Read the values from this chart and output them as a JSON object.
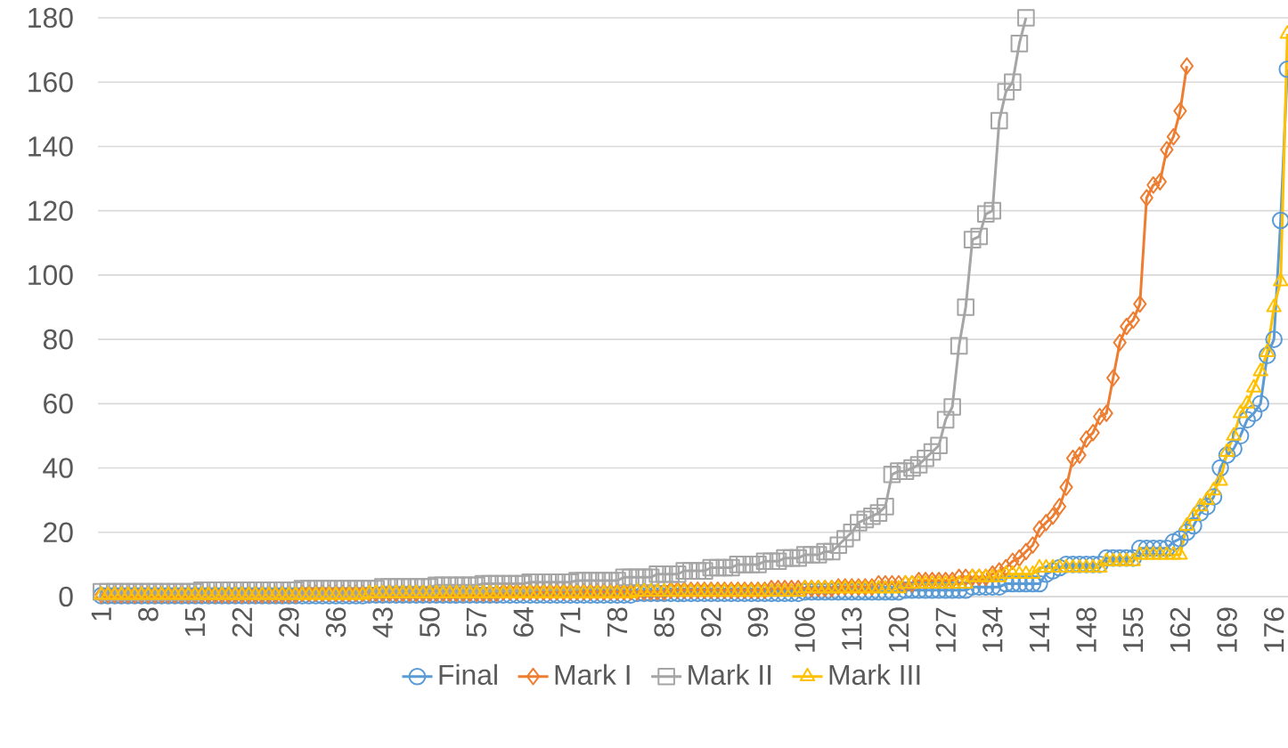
{
  "chart_data": {
    "type": "line",
    "categories": [
      "1",
      null,
      null,
      null,
      null,
      null,
      null,
      "8",
      null,
      null,
      null,
      null,
      null,
      null,
      "15",
      null,
      null,
      null,
      null,
      null,
      null,
      "22",
      null,
      null,
      null,
      null,
      null,
      null,
      "29",
      null,
      null,
      null,
      null,
      null,
      null,
      "36",
      null,
      null,
      null,
      null,
      null,
      null,
      "43",
      null,
      null,
      null,
      null,
      null,
      null,
      "50",
      null,
      null,
      null,
      null,
      null,
      null,
      "57",
      null,
      null,
      null,
      null,
      null,
      null,
      "64",
      null,
      null,
      null,
      null,
      null,
      null,
      "71",
      null,
      null,
      null,
      null,
      null,
      null,
      "78",
      null,
      null,
      null,
      null,
      null,
      null,
      "85",
      null,
      null,
      null,
      null,
      null,
      null,
      "92",
      null,
      null,
      null,
      null,
      null,
      null,
      "99",
      null,
      null,
      null,
      null,
      null,
      null,
      "106",
      null,
      null,
      null,
      null,
      null,
      null,
      "113",
      null,
      null,
      null,
      null,
      null,
      null,
      "120",
      null,
      null,
      null,
      null,
      null,
      null,
      "127",
      null,
      null,
      null,
      null,
      null,
      null,
      "134",
      null,
      null,
      null,
      null,
      null,
      null,
      "141",
      null,
      null,
      null,
      null,
      null,
      null,
      "148",
      null,
      null,
      null,
      null,
      null,
      null,
      "155",
      null,
      null,
      null,
      null,
      null,
      null,
      "162",
      null,
      null,
      null,
      null,
      null,
      null,
      "169",
      null,
      null,
      null,
      null,
      null,
      null,
      "176",
      null,
      null
    ],
    "ylim": [
      0,
      180
    ],
    "yticks": [
      0,
      20,
      40,
      60,
      80,
      100,
      120,
      140,
      160,
      180
    ],
    "grid": "y",
    "legend": "bottom",
    "series": [
      {
        "name": "Final",
        "color": "#5b9bd5",
        "marker": "circle",
        "values": [
          0.3,
          0.3,
          0.3,
          0.3,
          0.3,
          0.3,
          0.3,
          0.3,
          0.3,
          0.3,
          0.3,
          0.3,
          0.3,
          0.3,
          0.3,
          0.3,
          0.3,
          0.3,
          0.3,
          0.3,
          0.3,
          0.3,
          0.3,
          0.3,
          0.3,
          0.3,
          0.3,
          0.3,
          0.3,
          0.3,
          0.3,
          0.3,
          0.3,
          0.3,
          0.3,
          0.3,
          0.3,
          0.3,
          0.3,
          0.3,
          0.5,
          0.5,
          0.5,
          0.5,
          0.5,
          0.5,
          0.5,
          0.5,
          0.5,
          0.5,
          0.5,
          0.5,
          0.5,
          0.5,
          0.5,
          0.5,
          0.5,
          0.5,
          0.5,
          0.5,
          0.5,
          0.5,
          0.5,
          0.5,
          0.5,
          0.5,
          0.5,
          0.5,
          0.5,
          0.5,
          0.5,
          0.5,
          0.5,
          0.5,
          0.5,
          0.5,
          0.5,
          0.5,
          0.5,
          0.5,
          1,
          1,
          1,
          1,
          1,
          1,
          1,
          1,
          1,
          1,
          1,
          1,
          1,
          1,
          1,
          1,
          1,
          1,
          1,
          1,
          1,
          1,
          1,
          1,
          1,
          1.5,
          1.5,
          1.5,
          1.5,
          1.5,
          1.5,
          1.5,
          1.5,
          1.5,
          1.5,
          1.5,
          1.5,
          1.5,
          1.5,
          1.5,
          2,
          2,
          2,
          2,
          2,
          2,
          2,
          2,
          2,
          2,
          3,
          3,
          3,
          3,
          3,
          4,
          4,
          4,
          4,
          4,
          4,
          7,
          8,
          9,
          10,
          10,
          10,
          10,
          10,
          10,
          12,
          12,
          12,
          12,
          12,
          15,
          15,
          15,
          15,
          15,
          17,
          18,
          20,
          22,
          26,
          28,
          31,
          40,
          44,
          46,
          50,
          55,
          57,
          60,
          75,
          80,
          117,
          164
        ]
      },
      {
        "name": "Mark I",
        "color": "#ed7d31",
        "marker": "diamond",
        "values": [
          0.5,
          0.5,
          0.5,
          0.5,
          0.5,
          0.5,
          0.5,
          0.5,
          0.5,
          0.5,
          0.5,
          0.5,
          0.5,
          0.5,
          0.5,
          0.5,
          0.5,
          0.5,
          0.5,
          0.5,
          0.5,
          0.5,
          0.5,
          0.5,
          0.5,
          0.5,
          0.5,
          0.5,
          0.5,
          0.5,
          1,
          1,
          1,
          1,
          1,
          1,
          1,
          1,
          1,
          1,
          1,
          1,
          1,
          1,
          1,
          1,
          1,
          1,
          1,
          1,
          1,
          1,
          1,
          1,
          1,
          1,
          1,
          1,
          1,
          1,
          1.5,
          1.5,
          1.5,
          1.5,
          1.5,
          1.5,
          1.5,
          1.5,
          1.5,
          1.5,
          1.5,
          1.5,
          1.5,
          1.5,
          1.5,
          1.5,
          1.5,
          1.5,
          1.5,
          1.5,
          1.5,
          1.5,
          1.5,
          1.5,
          1.5,
          2,
          2,
          2,
          2,
          2,
          2,
          2,
          2,
          2,
          2,
          2,
          2,
          2,
          2,
          2,
          2.5,
          2.5,
          2.5,
          2.5,
          2.5,
          2.5,
          2.5,
          2.5,
          2.5,
          2.5,
          3,
          3,
          3,
          3,
          3,
          3,
          4,
          4,
          4,
          4,
          4,
          4,
          5,
          5,
          5,
          5,
          5,
          5,
          6,
          6,
          6,
          6,
          6,
          7,
          8,
          9,
          11,
          12,
          14,
          16,
          21,
          23,
          25,
          28,
          34,
          43,
          44,
          49,
          51,
          56,
          57,
          68,
          79,
          84,
          86,
          91,
          124,
          128,
          129,
          139,
          143,
          151,
          165,
          null,
          null,
          null,
          null,
          null,
          null,
          null,
          null,
          null,
          null,
          null,
          null,
          null,
          null,
          null
        ]
      },
      {
        "name": "Mark II",
        "color": "#a5a5a5",
        "marker": "square",
        "values": [
          1.5,
          1.5,
          1.5,
          1.5,
          1.5,
          1.5,
          1.5,
          1.5,
          1.5,
          1.5,
          1.5,
          1.5,
          1.5,
          1.5,
          1.5,
          2,
          2,
          2,
          2,
          2,
          2,
          2,
          2,
          2,
          2,
          2,
          2,
          2,
          2,
          2,
          2.5,
          2.5,
          2.5,
          2.5,
          2.5,
          2.5,
          2.5,
          2.5,
          2.5,
          2.5,
          2.5,
          2.5,
          3,
          3,
          3,
          3,
          3,
          3,
          3,
          3,
          3.5,
          3.5,
          3.5,
          3.5,
          3.5,
          3.5,
          3.5,
          4,
          4,
          4,
          4,
          4,
          4,
          4,
          4.5,
          4.5,
          4.5,
          4.5,
          4.5,
          4.5,
          4.5,
          5,
          5,
          5,
          5,
          5,
          5,
          5,
          6,
          6,
          6,
          6,
          6,
          7,
          7,
          7,
          7,
          8,
          8,
          8,
          8,
          9,
          9,
          9,
          9,
          10,
          10,
          10,
          10,
          11,
          11,
          11,
          12,
          12,
          12,
          13,
          13,
          13,
          14,
          14,
          16,
          18,
          20,
          23,
          24,
          25,
          26,
          28,
          38,
          39,
          39,
          40,
          41,
          43,
          45,
          47,
          55,
          59,
          78,
          90,
          111,
          112,
          119,
          120,
          148,
          157,
          160,
          172,
          180,
          null,
          null,
          null,
          null,
          null,
          null,
          null,
          null,
          null,
          null,
          null,
          null,
          null,
          null,
          null,
          null,
          null,
          null,
          null,
          null,
          null,
          null,
          null,
          null,
          null,
          null,
          null,
          null,
          null,
          null,
          null,
          null,
          null,
          null,
          null,
          null,
          null,
          null,
          null
        ]
      },
      {
        "name": "Mark III",
        "color": "#ffc000",
        "marker": "triangle",
        "values": [
          0.5,
          0.5,
          0.5,
          0.5,
          0.5,
          0.5,
          0.5,
          0.5,
          0.5,
          0.5,
          0.5,
          0.5,
          0.5,
          0.5,
          0.5,
          0.5,
          0.5,
          0.5,
          0.5,
          0.5,
          0.5,
          0.5,
          0.5,
          0.5,
          0.5,
          0.5,
          0.5,
          0.5,
          0.5,
          0.5,
          0.5,
          0.5,
          0.5,
          0.5,
          0.5,
          0.5,
          0.5,
          0.5,
          0.5,
          0.5,
          1,
          1,
          1,
          1,
          1,
          1,
          1,
          1,
          1,
          1,
          1,
          1,
          1,
          1,
          1,
          1,
          1,
          1,
          1,
          1,
          1,
          1,
          1,
          1,
          1,
          1,
          1,
          1,
          1,
          1,
          1,
          1,
          1,
          1,
          1,
          1,
          1,
          1,
          1,
          1,
          1.5,
          1.5,
          1.5,
          1.5,
          1.5,
          1.5,
          1.5,
          1.5,
          1.5,
          1.5,
          1.5,
          1.5,
          1.5,
          1.5,
          1.5,
          1.5,
          1.5,
          1.5,
          1.5,
          1.5,
          1.5,
          1.5,
          1.5,
          1.5,
          1.5,
          2.5,
          2.5,
          2.5,
          2.5,
          2.5,
          2.5,
          2.5,
          2.5,
          2.5,
          2.5,
          2.5,
          2.5,
          2.5,
          2.5,
          2.5,
          4,
          4,
          4,
          4,
          4,
          4,
          4,
          4,
          4,
          4,
          6,
          6,
          6,
          6,
          6,
          7,
          7,
          7,
          7,
          7,
          9,
          9,
          9,
          9,
          9,
          9,
          9,
          9,
          9,
          9,
          11,
          11,
          11,
          11,
          11,
          13,
          13,
          13,
          13,
          13,
          13,
          13,
          22,
          25,
          28,
          30,
          33,
          36,
          45,
          50,
          57,
          60,
          65,
          70,
          76,
          90,
          98,
          175
        ]
      }
    ]
  }
}
